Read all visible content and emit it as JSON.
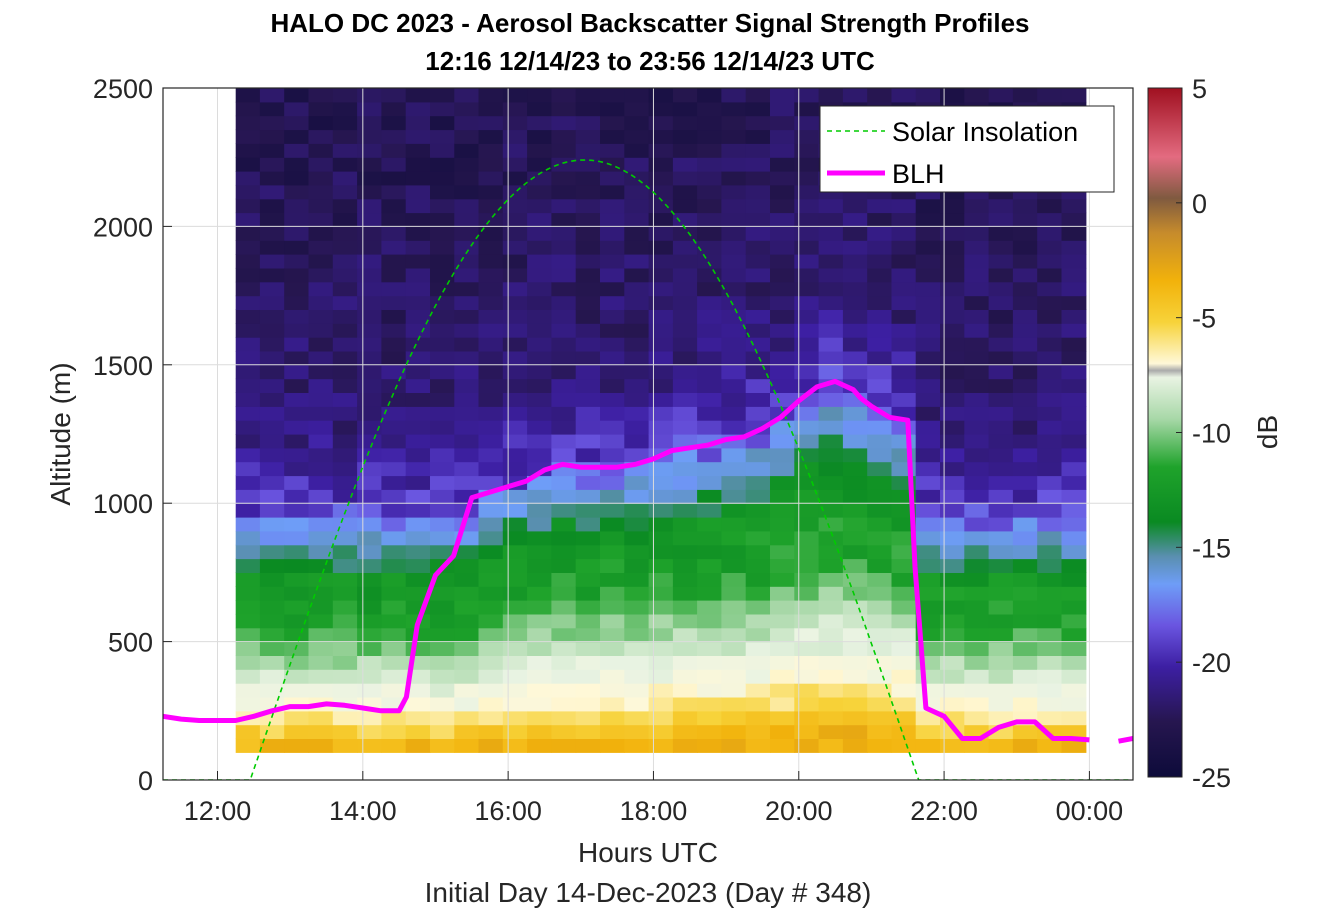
{
  "chart_data": {
    "type": "heatmap",
    "title": "HALO DC 2023 - Aerosol Backscatter Signal Strength Profiles",
    "subtitle": "12:16 12/14/23 to 23:56 12/14/23  UTC",
    "xlabel": "Hours UTC",
    "ylabel": "Altitude (m)",
    "footer": "Initial Day 14-Dec-2023 (Day # 348)",
    "x_ticks": [
      "12:00",
      "14:00",
      "16:00",
      "18:00",
      "20:00",
      "22:00",
      "00:00"
    ],
    "y_ticks": [
      "0",
      "500",
      "1000",
      "1500",
      "2000",
      "2500"
    ],
    "xlim_hours": [
      11.25,
      24.6
    ],
    "ylim": [
      0,
      2500
    ],
    "colorbar": {
      "label": "dB",
      "ticks": [
        "5",
        "0",
        "-5",
        "-10",
        "-15",
        "-20",
        "-25"
      ],
      "range": [
        -25,
        5
      ]
    },
    "legend": {
      "placement": "top-right",
      "entries": [
        {
          "name": "Solar Insolation",
          "color": "#00cc00",
          "style": "dashed"
        },
        {
          "name": "BLH",
          "color": "#ff00ff",
          "style": "solid"
        }
      ]
    },
    "heatmap_extent": {
      "x_start_hours": 12.25,
      "x_end_hours": 23.95,
      "y_start_m": 100,
      "y_end_m": 2500
    },
    "heatmap_profiles_db": [
      {
        "alt_m": 2450,
        "db": -24
      },
      {
        "alt_m": 2150,
        "db": -23.5
      },
      {
        "alt_m": 1850,
        "db": -23.5
      },
      {
        "alt_m": 1500,
        "db": -23
      },
      {
        "alt_m": 1250,
        "db": -22.5
      },
      {
        "alt_m": 1080,
        "db": -21
      },
      {
        "alt_m": 950,
        "db": -19
      },
      {
        "alt_m": 800,
        "db": -16.5
      },
      {
        "alt_m": 600,
        "db": -15.5
      },
      {
        "alt_m": 450,
        "db": -13
      },
      {
        "alt_m": 300,
        "db": -10.5
      },
      {
        "alt_m": 200,
        "db": -8
      },
      {
        "alt_m": 130,
        "db": -6
      }
    ],
    "solar_insolation": {
      "peak_altitude_m": 2240,
      "peak_hour": 17.05,
      "rise_hour": 12.45,
      "set_hour": 21.65
    },
    "blh": {
      "x_hours": [
        11.25,
        11.5,
        11.75,
        12.0,
        12.25,
        12.5,
        12.75,
        13.0,
        13.25,
        13.5,
        13.75,
        14.0,
        14.25,
        14.5,
        14.6,
        14.75,
        15.0,
        15.25,
        15.5,
        15.75,
        16.0,
        16.25,
        16.5,
        16.75,
        17.0,
        17.25,
        17.5,
        17.75,
        18.0,
        18.25,
        18.5,
        18.75,
        19.0,
        19.25,
        19.5,
        19.75,
        20.0,
        20.25,
        20.5,
        20.75,
        20.85,
        21.0,
        21.25,
        21.5,
        21.6,
        21.75,
        22.0,
        22.25,
        22.5,
        22.75,
        23.0,
        23.25,
        23.5,
        23.75,
        24.0
      ],
      "y_m": [
        230,
        220,
        215,
        215,
        215,
        230,
        250,
        265,
        265,
        275,
        270,
        260,
        250,
        250,
        300,
        560,
        740,
        810,
        1020,
        1040,
        1060,
        1080,
        1120,
        1140,
        1130,
        1130,
        1130,
        1140,
        1160,
        1190,
        1200,
        1210,
        1230,
        1240,
        1270,
        1310,
        1370,
        1420,
        1440,
        1410,
        1380,
        1350,
        1310,
        1300,
        770,
        260,
        230,
        150,
        150,
        190,
        210,
        210,
        150,
        150,
        145
      ],
      "extra_segment": {
        "x_hours": [
          24.4,
          24.6
        ],
        "y_m": [
          140,
          150
        ]
      }
    }
  }
}
